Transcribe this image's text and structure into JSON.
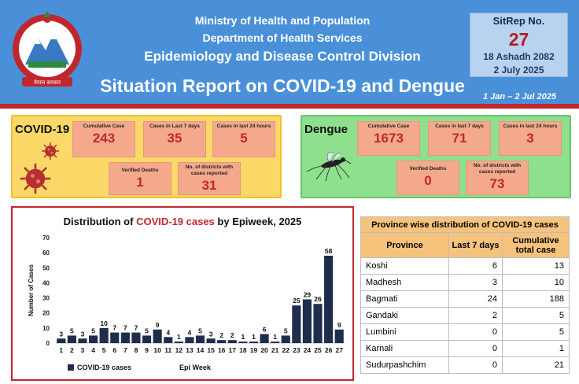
{
  "header": {
    "ministry": "Ministry of Health and Population",
    "department": "Department of Health Services",
    "division": "Epidemiology and Disease Control Division",
    "report_title": "Situation Report on COVID-19 and Dengue",
    "date_range": "1 Jan – 2 Jul 2025",
    "emblem_text": "नेपाल सरकार",
    "sitrep": {
      "label": "SitRep No.",
      "number": "27",
      "date_nepali": "18 Ashadh 2082",
      "date_english": "2 July 2025"
    }
  },
  "covid": {
    "title": "COVID-19",
    "cards": [
      {
        "label": "Cumulative Case",
        "value": "243"
      },
      {
        "label": "Cases in Last 7 days",
        "value": "35"
      },
      {
        "label": "Cases in last 24 hours",
        "value": "5"
      },
      {
        "label": "Verified Deaths",
        "value": "1"
      },
      {
        "label": "No. of districts with cases reported",
        "value": "31"
      }
    ]
  },
  "dengue": {
    "title": "Dengue",
    "cards": [
      {
        "label": "Cumulative Case",
        "value": "1673"
      },
      {
        "label": "Cases in last 7 days",
        "value": "71"
      },
      {
        "label": "Cases in last 24 hours",
        "value": "3"
      },
      {
        "label": "Verified Deaths",
        "value": "0"
      },
      {
        "label": "No. of districts with cases reported",
        "value": "73"
      }
    ]
  },
  "chart_data": {
    "type": "bar",
    "title_prefix": "Distribution of ",
    "title_highlight": "COVID-19 cases",
    "title_suffix": " by Epiweek, 2025",
    "xlabel": "Epi Week",
    "ylabel": "Number of Cases",
    "ylim": [
      0,
      70
    ],
    "yticks": [
      0,
      10,
      20,
      30,
      40,
      50,
      60,
      70
    ],
    "grid": false,
    "legend": "bottom-left",
    "bar_color": "#1f2d4d",
    "categories": [
      "1",
      "2",
      "3",
      "4",
      "5",
      "6",
      "7",
      "8",
      "9",
      "10",
      "11",
      "12",
      "13",
      "14",
      "15",
      "16",
      "17",
      "18",
      "19",
      "20",
      "21",
      "22",
      "23",
      "24",
      "25",
      "26",
      "27"
    ],
    "series": [
      {
        "name": "COVID-19 cases",
        "values": [
          3,
          5,
          3,
          5,
          10,
          7,
          7,
          7,
          5,
          9,
          4,
          1,
          4,
          5,
          3,
          2,
          2,
          1,
          1,
          6,
          1,
          5,
          25,
          29,
          26,
          58,
          9
        ]
      }
    ]
  },
  "province_table": {
    "title": "Province wise distribution of COVID-19 cases",
    "headers": [
      "Province",
      "Last 7 days",
      "Cumulative total case"
    ],
    "rows": [
      {
        "province": "Koshi",
        "last7": "6",
        "cumulative": "13"
      },
      {
        "province": "Madhesh",
        "last7": "3",
        "cumulative": "10"
      },
      {
        "province": "Bagmati",
        "last7": "24",
        "cumulative": "188"
      },
      {
        "province": "Gandaki",
        "last7": "2",
        "cumulative": "5"
      },
      {
        "province": "Lumbini",
        "last7": "0",
        "cumulative": "5"
      },
      {
        "province": "Karnali",
        "last7": "0",
        "cumulative": "1"
      },
      {
        "province": "Sudurpashchim",
        "last7": "0",
        "cumulative": "21"
      }
    ]
  },
  "colors": {
    "header_blue": "#4a90d9",
    "accent_red": "#c0272d",
    "covid_panel": "#fbd968",
    "dengue_panel": "#8fe08e",
    "card": "#f4a98c"
  }
}
